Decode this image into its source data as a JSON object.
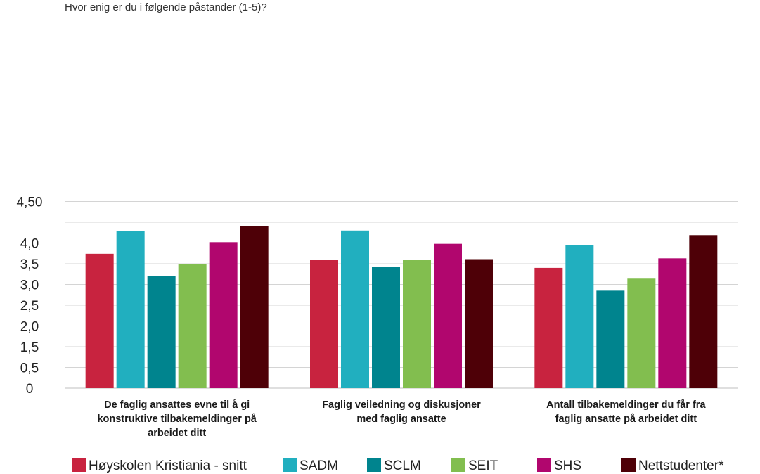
{
  "chart_data": {
    "type": "bar",
    "title": "Hvor enig er du i følgende påstander (1-5)?",
    "xlabel": "",
    "ylabel": "",
    "ylim": [
      0,
      4.5
    ],
    "y_tick_labels": [
      "0",
      "0,5",
      "1,5",
      "2,0",
      "2,5",
      "3,0",
      "3,5",
      "4,0",
      "4,50"
    ],
    "grid": true,
    "legend_position": "bottom",
    "categories": [
      [
        "De faglig ansattes evne til å gi",
        "konstruktive tilbakemeldinger på",
        "arbeidet ditt"
      ],
      [
        "Faglig veiledning og diskusjoner",
        "med faglig ansatte"
      ],
      [
        "Antall tilbakemeldinger du får fra",
        "faglig ansatte på arbeidet ditt"
      ]
    ],
    "series": [
      {
        "name": "Høyskolen Kristiania - snitt",
        "color": "#C8233F",
        "values": [
          3.24,
          3.1,
          2.9
        ]
      },
      {
        "name": "SADM",
        "color": "#21AFBF",
        "values": [
          3.78,
          3.8,
          3.45
        ]
      },
      {
        "name": "SCLM",
        "color": "#00848E",
        "values": [
          2.7,
          2.92,
          2.35
        ]
      },
      {
        "name": "SEIT",
        "color": "#82BE4F",
        "values": [
          3.0,
          3.09,
          2.64
        ]
      },
      {
        "name": "SHS",
        "color": "#B1066E",
        "values": [
          3.52,
          3.48,
          3.13
        ]
      },
      {
        "name": "Nettstudenter*",
        "color": "#4E0007",
        "values": [
          3.91,
          3.11,
          3.69
        ]
      }
    ]
  }
}
